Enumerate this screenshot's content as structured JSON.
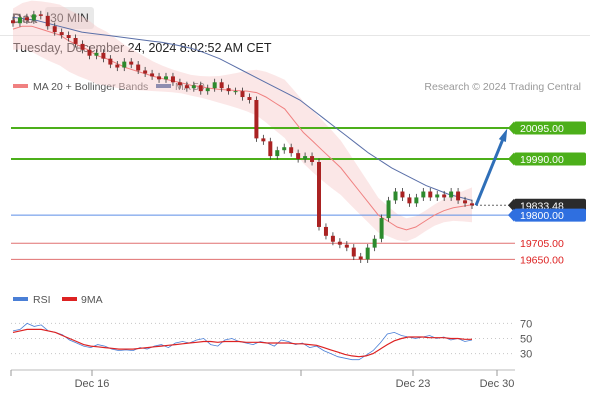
{
  "header": {
    "symbol": "Dax",
    "interval": "30 MIN",
    "timestamp": "Tuesday, December 24, 2024 8:02:52 AM CET"
  },
  "legend": {
    "items": [
      {
        "label": "MA 20 + Bollinger Bands",
        "color": "#f08080"
      },
      {
        "label": "MA 50",
        "color": "#3a5a9a"
      }
    ],
    "credit": "Research © 2024 Trading Central"
  },
  "rsi_legend": {
    "items": [
      {
        "label": "RSI",
        "color": "#4a7fd6"
      },
      {
        "label": "9MA",
        "color": "#dd2222"
      }
    ]
  },
  "chart_data": [
    {
      "type": "candlestick",
      "y_range": [
        19560,
        20190
      ],
      "levels": [
        {
          "label": "20095.00",
          "value": 20095.0,
          "kind": "resistance"
        },
        {
          "label": "19990.00",
          "value": 19990.0,
          "kind": "resistance"
        },
        {
          "label": "19833.48",
          "value": 19833.48,
          "kind": "last_price"
        },
        {
          "label": "19800.00",
          "value": 19800.0,
          "kind": "pivot"
        },
        {
          "label": "19705.00",
          "value": 19705.0,
          "kind": "support"
        },
        {
          "label": "19650.00",
          "value": 19650.0,
          "kind": "support"
        }
      ],
      "x_ticks": [
        "Dec 16",
        "Dec 23",
        "Dec 30"
      ],
      "close_series": [
        20450,
        20470,
        20460,
        20480,
        20475,
        20440,
        20420,
        20410,
        20400,
        20380,
        20360,
        20340,
        20350,
        20330,
        20310,
        20300,
        20320,
        20310,
        20290,
        20280,
        20270,
        20260,
        20270,
        20250,
        20240,
        20230,
        20240,
        20220,
        20230,
        20250,
        20230,
        20220,
        20220,
        20200,
        20190,
        20060,
        20050,
        20000,
        20020,
        20030,
        20010,
        19990,
        20000,
        19980,
        19760,
        19730,
        19710,
        19700,
        19690,
        19660,
        19650,
        19690,
        19720,
        19790,
        19850,
        19880,
        19860,
        19840,
        19860,
        19880,
        19860,
        19870,
        19860,
        19880,
        19850,
        19840,
        19833
      ],
      "ma20": [
        20430,
        20440,
        20440,
        20430,
        20420,
        20410,
        20390,
        20375,
        20360,
        20340,
        20330,
        20315,
        20300,
        20290,
        20280,
        20270,
        20262,
        20255,
        20248,
        20240,
        20235,
        20230,
        20226,
        20224,
        20222,
        20220,
        20215,
        20200,
        20180,
        20160,
        20120,
        20080,
        20050,
        20020,
        19990,
        19960,
        19920,
        19880,
        19840,
        19800,
        19780,
        19760,
        19750,
        19760,
        19780,
        19800,
        19815,
        19825,
        19830,
        19835
      ],
      "ma50": [
        20470,
        20465,
        20460,
        20450,
        20440,
        20430,
        20420,
        20415,
        20410,
        20405,
        20400,
        20395,
        20390,
        20385,
        20378,
        20370,
        20360,
        20345,
        20330,
        20310,
        20290,
        20270,
        20250,
        20230,
        20210,
        20190,
        20160,
        20130,
        20100,
        20070,
        20040,
        20010,
        19985,
        19960,
        19940,
        19920,
        19900,
        19885,
        19870,
        19860,
        19850
      ],
      "forecast": {
        "from": 19833.48,
        "to": 20095.0
      }
    },
    {
      "type": "line",
      "name": "RSI",
      "y_range": [
        15,
        85
      ],
      "y_ticks": [
        70,
        50,
        30
      ],
      "series": [
        {
          "name": "RSI",
          "values": [
            60,
            62,
            70,
            66,
            68,
            60,
            58,
            55,
            48,
            44,
            40,
            38,
            42,
            40,
            36,
            34,
            35,
            34,
            38,
            36,
            40,
            42,
            38,
            44,
            46,
            44,
            48,
            50,
            42,
            40,
            48,
            50,
            46,
            44,
            42,
            46,
            44,
            40,
            48,
            46,
            42,
            44,
            38,
            40,
            34,
            30,
            26,
            24,
            22,
            22,
            28,
            34,
            44,
            56,
            58,
            54,
            52,
            50,
            52,
            54,
            50,
            52,
            48,
            50,
            46,
            48
          ]
        },
        {
          "name": "9MA",
          "values": [
            58,
            60,
            62,
            62,
            62,
            60,
            58,
            54,
            50,
            46,
            42,
            40,
            39,
            38,
            37,
            36,
            36,
            36,
            37,
            38,
            39,
            40,
            41,
            42,
            43,
            44,
            45,
            46,
            46,
            45,
            46,
            46,
            46,
            45,
            45,
            45,
            44,
            44,
            44,
            44,
            43,
            43,
            42,
            41,
            38,
            35,
            32,
            29,
            27,
            26,
            27,
            30,
            36,
            42,
            47,
            50,
            52,
            52,
            52,
            51,
            51,
            51,
            50,
            50,
            49,
            49
          ]
        }
      ]
    }
  ]
}
